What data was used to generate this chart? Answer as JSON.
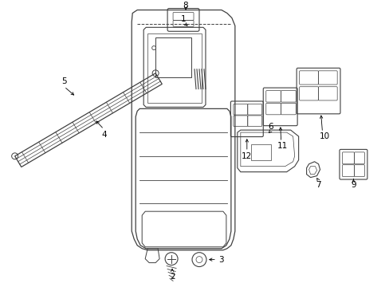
{
  "bg_color": "#ffffff",
  "line_color": "#404040",
  "fig_w": 4.89,
  "fig_h": 3.6,
  "dpi": 100
}
